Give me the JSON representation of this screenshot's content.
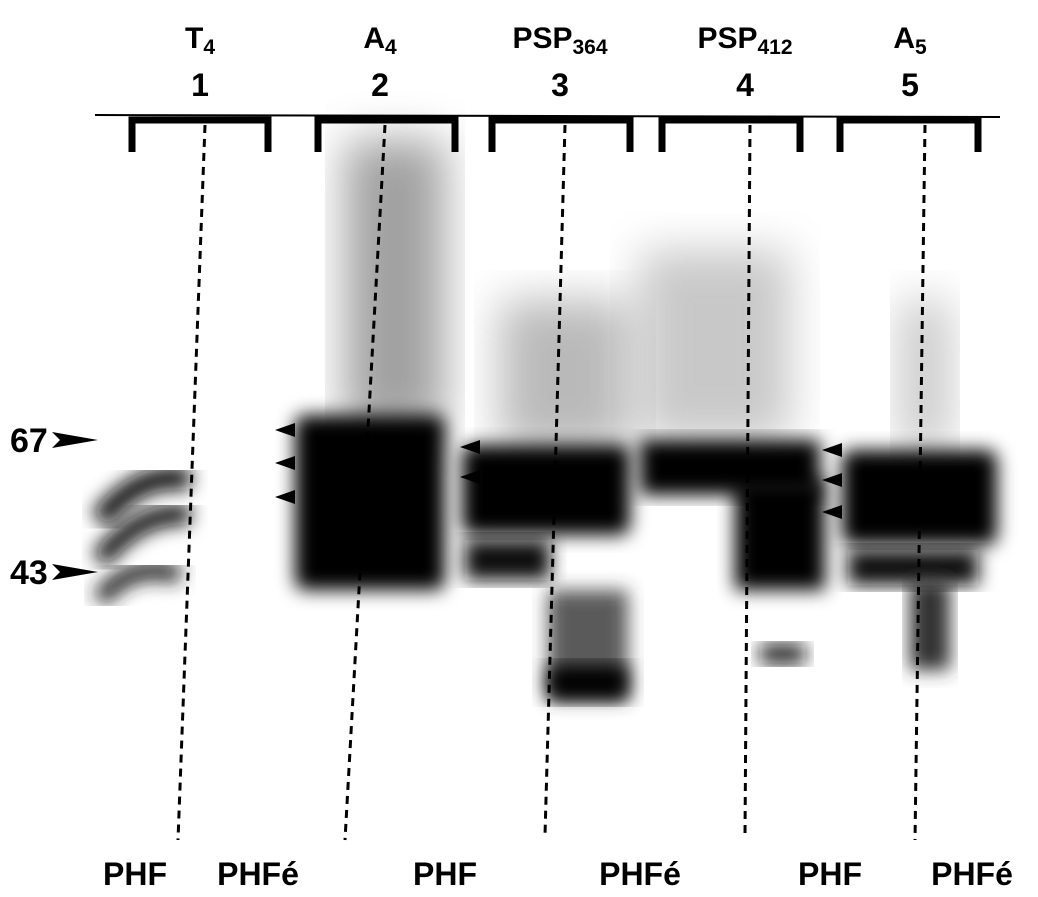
{
  "lanes": [
    {
      "name": "T",
      "sub": "4",
      "number": 1
    },
    {
      "name": "A",
      "sub": "4",
      "number": 2
    },
    {
      "name": "PSP",
      "sub": "364",
      "number": 3
    },
    {
      "name": "PSP",
      "sub": "412",
      "number": 4
    },
    {
      "name": "A",
      "sub": "5",
      "number": 5
    }
  ],
  "markers": [
    67,
    43
  ],
  "bottom_labels": [
    "PHF",
    "PHFé",
    "PHF",
    "PHFé",
    "PHF",
    "PHFé"
  ]
}
